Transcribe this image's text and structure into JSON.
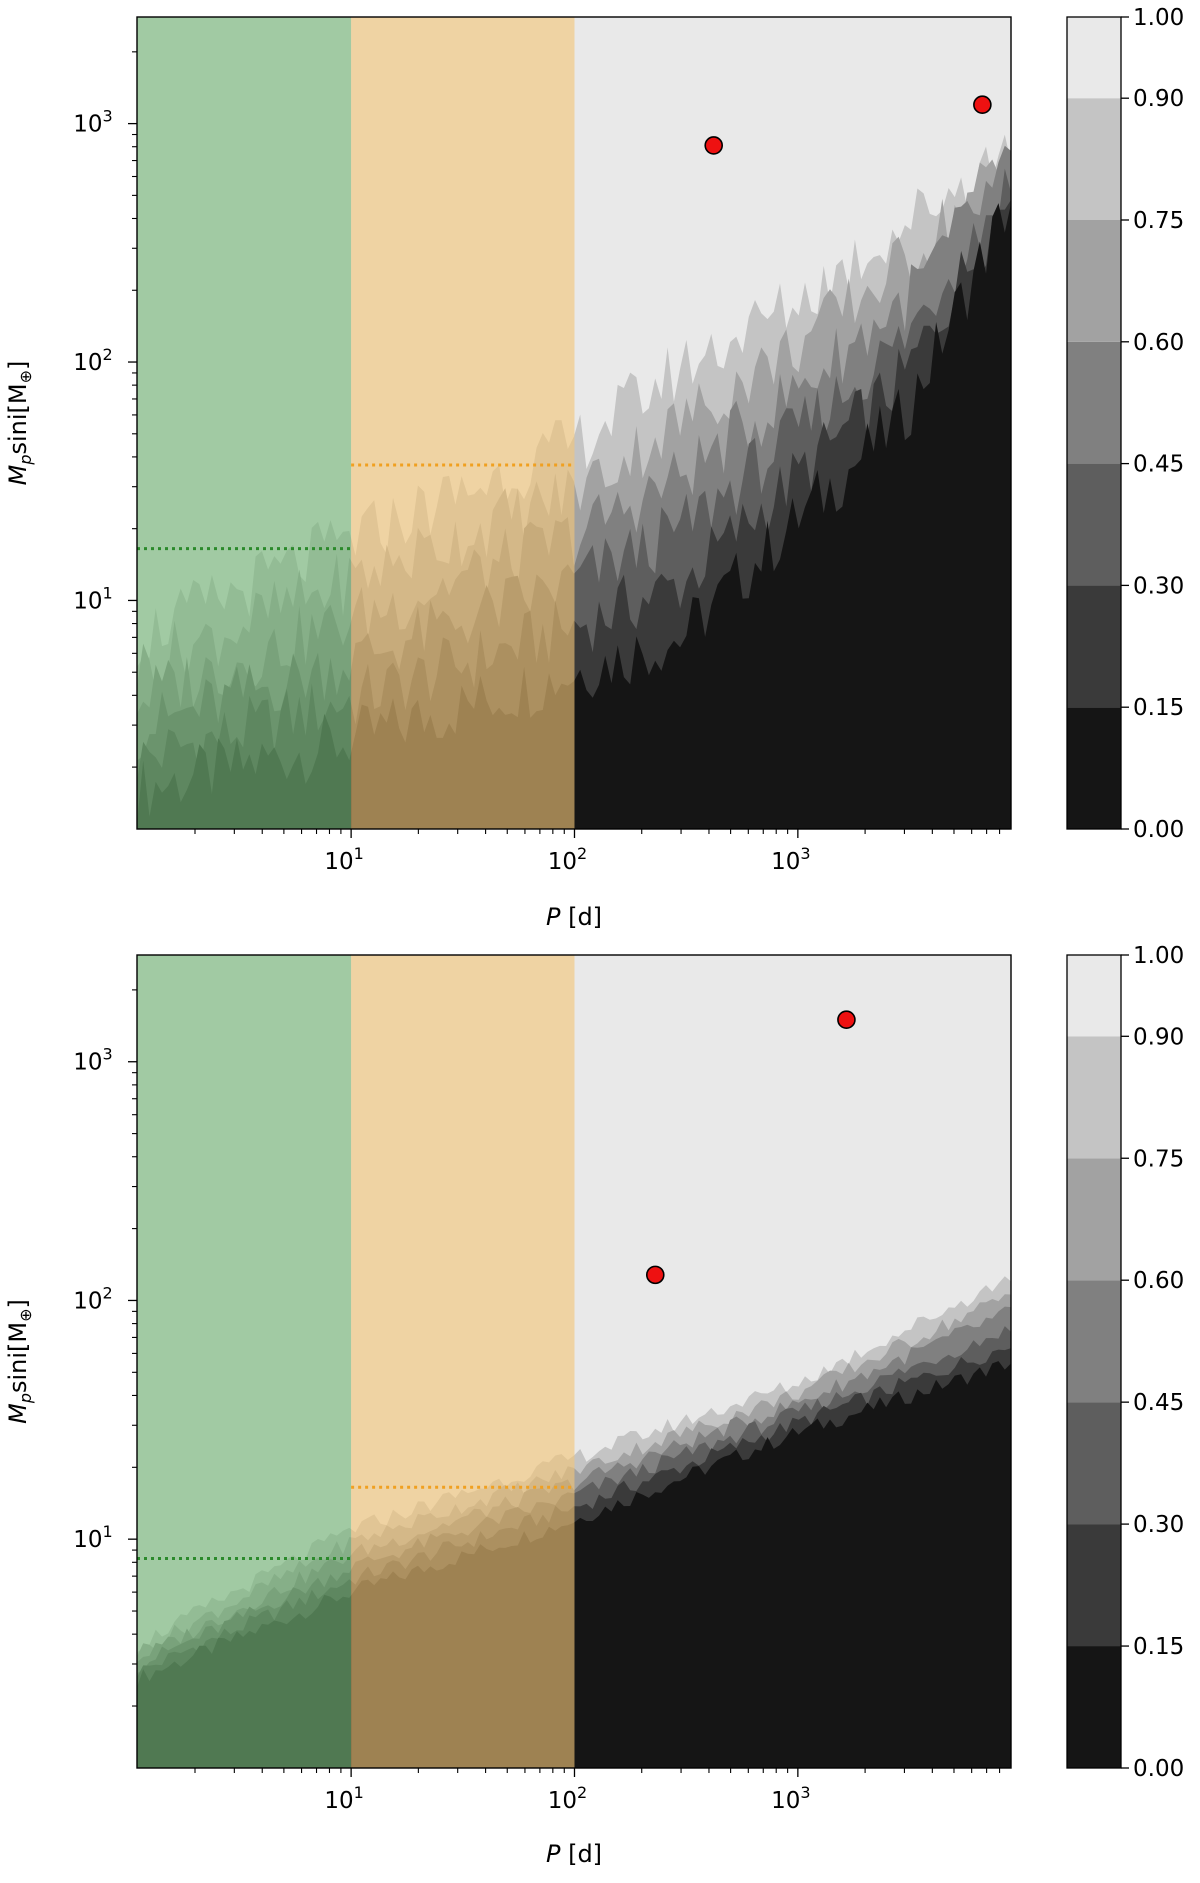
{
  "chart_data": [
    {
      "type": "heatmap",
      "panel": "top",
      "xlabel_var": "P",
      "xlabel_unit": "[d]",
      "ylabel_parts": {
        "M": "M",
        "sub": "p",
        "sini": "sini",
        "unit_open": "[M",
        "unit_sub": "⊕",
        "unit_close": "]"
      },
      "xscale": "log",
      "yscale": "log",
      "xlim": [
        1.1,
        9000
      ],
      "ylim": [
        1.1,
        2800
      ],
      "x_ticks": [
        {
          "base": "10",
          "exp": "1",
          "value": 10
        },
        {
          "base": "10",
          "exp": "2",
          "value": 100
        },
        {
          "base": "10",
          "exp": "3",
          "value": 1000
        }
      ],
      "y_ticks": [
        {
          "base": "10",
          "exp": "1",
          "value": 10
        },
        {
          "base": "10",
          "exp": "2",
          "value": 100
        },
        {
          "base": "10",
          "exp": "3",
          "value": 1000
        }
      ],
      "colorbar": {
        "levels": [
          0.0,
          0.15,
          0.3,
          0.45,
          0.6,
          0.75,
          0.9,
          1.0
        ],
        "tick_labels": [
          "0.00",
          "0.15",
          "0.30",
          "0.45",
          "0.60",
          "0.75",
          "0.90",
          "1.00"
        ],
        "colors": [
          "#151515",
          "#3a3a3a",
          "#5e5e5e",
          "#808080",
          "#a2a2a2",
          "#c4c4c4",
          "#e9e9e9"
        ]
      },
      "period_bands": [
        {
          "x0": 1.1,
          "x1": 10,
          "color": "#75b777"
        },
        {
          "x0": 10,
          "x1": 100,
          "color": "#f2c577"
        }
      ],
      "dotted_lines": [
        {
          "x0": 1.1,
          "x1": 10,
          "y": 16.5,
          "color": "#2b8a2b"
        },
        {
          "x0": 10,
          "x1": 100,
          "y": 37,
          "color": "#f0a020"
        }
      ],
      "planets": [
        {
          "P": 420,
          "Msini": 810
        },
        {
          "P": 6700,
          "Msini": 1200
        }
      ],
      "detection_boundary_msini": [
        {
          "P": 1.1,
          "y90": 7,
          "y10": 1.6
        },
        {
          "P": 10,
          "y90": 18,
          "y10": 2.6
        },
        {
          "P": 100,
          "y90": 45,
          "y10": 5
        },
        {
          "P": 300,
          "y90": 95,
          "y10": 7
        },
        {
          "P": 1000,
          "y90": 180,
          "y10": 22
        },
        {
          "P": 3000,
          "y90": 380,
          "y10": 60
        },
        {
          "P": 9000,
          "y90": 800,
          "y10": 480
        }
      ]
    },
    {
      "type": "heatmap",
      "panel": "bottom",
      "xlabel_var": "P",
      "xlabel_unit": "[d]",
      "ylabel_parts": {
        "M": "M",
        "sub": "p",
        "sini": "sini",
        "unit_open": "[M",
        "unit_sub": "⊕",
        "unit_close": "]"
      },
      "xscale": "log",
      "yscale": "log",
      "xlim": [
        1.1,
        9000
      ],
      "ylim": [
        1.1,
        2800
      ],
      "x_ticks": [
        {
          "base": "10",
          "exp": "1",
          "value": 10
        },
        {
          "base": "10",
          "exp": "2",
          "value": 100
        },
        {
          "base": "10",
          "exp": "3",
          "value": 1000
        }
      ],
      "y_ticks": [
        {
          "base": "10",
          "exp": "1",
          "value": 10
        },
        {
          "base": "10",
          "exp": "2",
          "value": 100
        },
        {
          "base": "10",
          "exp": "3",
          "value": 1000
        }
      ],
      "colorbar": {
        "levels": [
          0.0,
          0.15,
          0.3,
          0.45,
          0.6,
          0.75,
          0.9,
          1.0
        ],
        "tick_labels": [
          "0.00",
          "0.15",
          "0.30",
          "0.45",
          "0.60",
          "0.75",
          "0.90",
          "1.00"
        ],
        "colors": [
          "#151515",
          "#3a3a3a",
          "#5e5e5e",
          "#808080",
          "#a2a2a2",
          "#c4c4c4",
          "#e9e9e9"
        ]
      },
      "period_bands": [
        {
          "x0": 1.1,
          "x1": 10,
          "color": "#75b777"
        },
        {
          "x0": 10,
          "x1": 100,
          "color": "#f2c577"
        }
      ],
      "dotted_lines": [
        {
          "x0": 1.1,
          "x1": 10,
          "y": 8.3,
          "color": "#2b8a2b"
        },
        {
          "x0": 10,
          "x1": 100,
          "y": 16.5,
          "color": "#f0a020"
        }
      ],
      "planets": [
        {
          "P": 230,
          "Msini": 128
        },
        {
          "P": 1650,
          "Msini": 1500
        }
      ],
      "detection_boundary_msini": [
        {
          "P": 1.1,
          "y90": 3.6,
          "y10": 2.6
        },
        {
          "P": 10,
          "y90": 11,
          "y10": 6
        },
        {
          "P": 100,
          "y90": 22,
          "y10": 12
        },
        {
          "P": 1000,
          "y90": 45,
          "y10": 28
        },
        {
          "P": 9000,
          "y90": 125,
          "y10": 55
        }
      ]
    }
  ]
}
